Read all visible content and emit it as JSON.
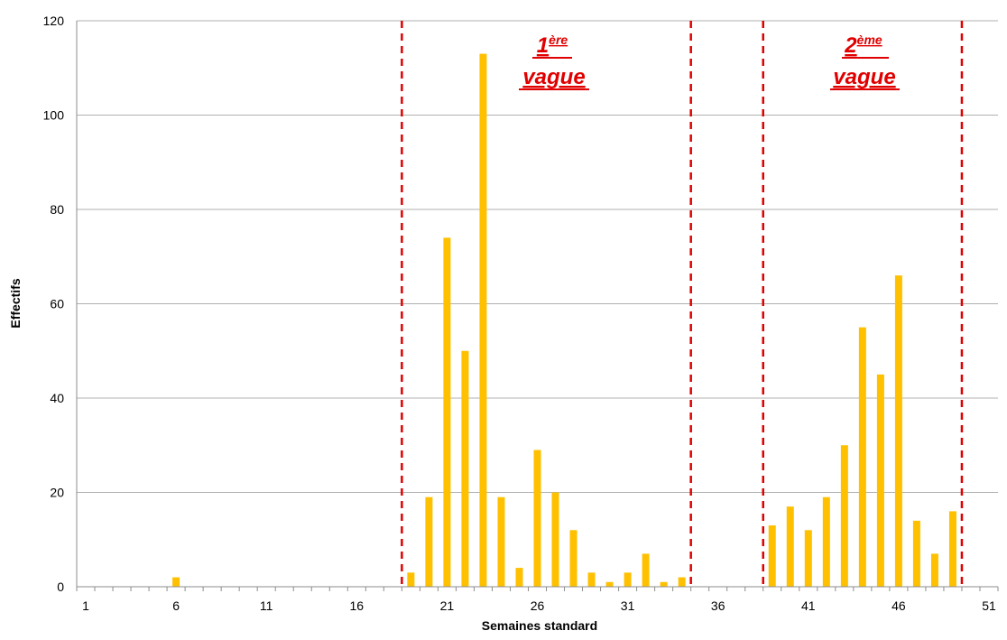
{
  "chart_data": {
    "type": "bar",
    "xlabel": "Semaines standard",
    "ylabel": "Effectifs",
    "ylim": [
      0,
      120
    ],
    "yticks": [
      0,
      20,
      40,
      60,
      80,
      100,
      120
    ],
    "xlim": [
      1,
      52
    ],
    "xticks": [
      1,
      6,
      11,
      16,
      21,
      26,
      31,
      36,
      41,
      46,
      51
    ],
    "grid": "horizontal",
    "bar_color": "#FFC000",
    "marker_color": "#E00000",
    "weeks": [
      6,
      19,
      20,
      21,
      22,
      23,
      24,
      25,
      26,
      27,
      28,
      29,
      30,
      31,
      32,
      33,
      34,
      39,
      40,
      41,
      42,
      43,
      44,
      45,
      46,
      47,
      48,
      49
    ],
    "values": [
      2,
      3,
      19,
      74,
      50,
      113,
      19,
      4,
      29,
      20,
      12,
      3,
      1,
      3,
      7,
      1,
      2,
      13,
      17,
      12,
      19,
      30,
      55,
      45,
      66,
      14,
      7,
      16
    ],
    "wave_boundaries": [
      18.5,
      34.5,
      38.5,
      49.5
    ],
    "annotations": [
      {
        "num": "1",
        "sup": "ère",
        "word": "vague"
      },
      {
        "num": "2",
        "sup": "ème",
        "word": "vague"
      }
    ]
  }
}
